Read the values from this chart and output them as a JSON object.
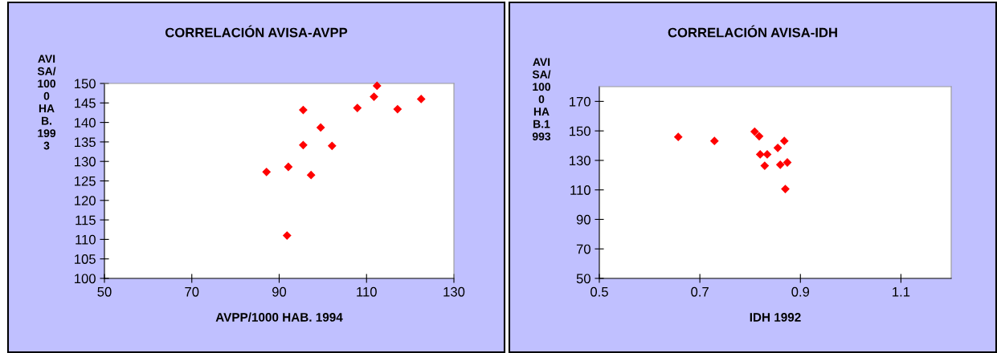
{
  "chart_data": [
    {
      "type": "scatter",
      "title": "CORRELACIÓN AVISA-AVPP",
      "xlabel": "AVPP/1000 HAB. 1994",
      "ylabel": "AVI\nSA/\n100\n0\nHA\nB.\n199\n3",
      "marker": "diamond",
      "grid": false,
      "xlim": [
        50,
        130
      ],
      "xticks": [
        50,
        70,
        90,
        110,
        130
      ],
      "ylim": [
        100,
        150
      ],
      "yticks": [
        100,
        105,
        110,
        115,
        120,
        125,
        130,
        135,
        140,
        145,
        150
      ],
      "series": [
        {
          "color": "#ff0000",
          "x": [
            112.4,
            111.7,
            122.5,
            107.9,
            117.1,
            95.5,
            99.5,
            95.5,
            102.1,
            92.1,
            87.1,
            97.3,
            91.8
          ],
          "values": [
            149.4,
            146.6,
            146.0,
            143.7,
            143.4,
            143.2,
            138.7,
            134.2,
            134.0,
            128.6,
            127.3,
            126.5,
            111.0
          ]
        }
      ]
    },
    {
      "type": "scatter",
      "title": "CORRELACIÓN AVISA-IDH",
      "xlabel": "IDH 1992",
      "ylabel": "AVI\nSA/\n100\n0\nHA\nB.1\n993",
      "marker": "diamond",
      "grid": false,
      "xlim": [
        0.5,
        1.2
      ],
      "xticks": [
        0.5,
        0.7,
        0.9,
        1.1
      ],
      "ylim": [
        50,
        180
      ],
      "yticks": [
        50,
        70,
        90,
        110,
        130,
        150,
        170
      ],
      "series": [
        {
          "color": "#ff0000",
          "x": [
            0.657,
            0.729,
            0.809,
            0.818,
            0.868,
            0.855,
            0.82,
            0.834,
            0.829,
            0.86,
            0.874,
            0.87
          ],
          "values": [
            145.9,
            143.2,
            149.5,
            146.4,
            143.2,
            138.5,
            134.1,
            134.1,
            126.4,
            127.1,
            128.6,
            110.6
          ]
        }
      ]
    }
  ]
}
